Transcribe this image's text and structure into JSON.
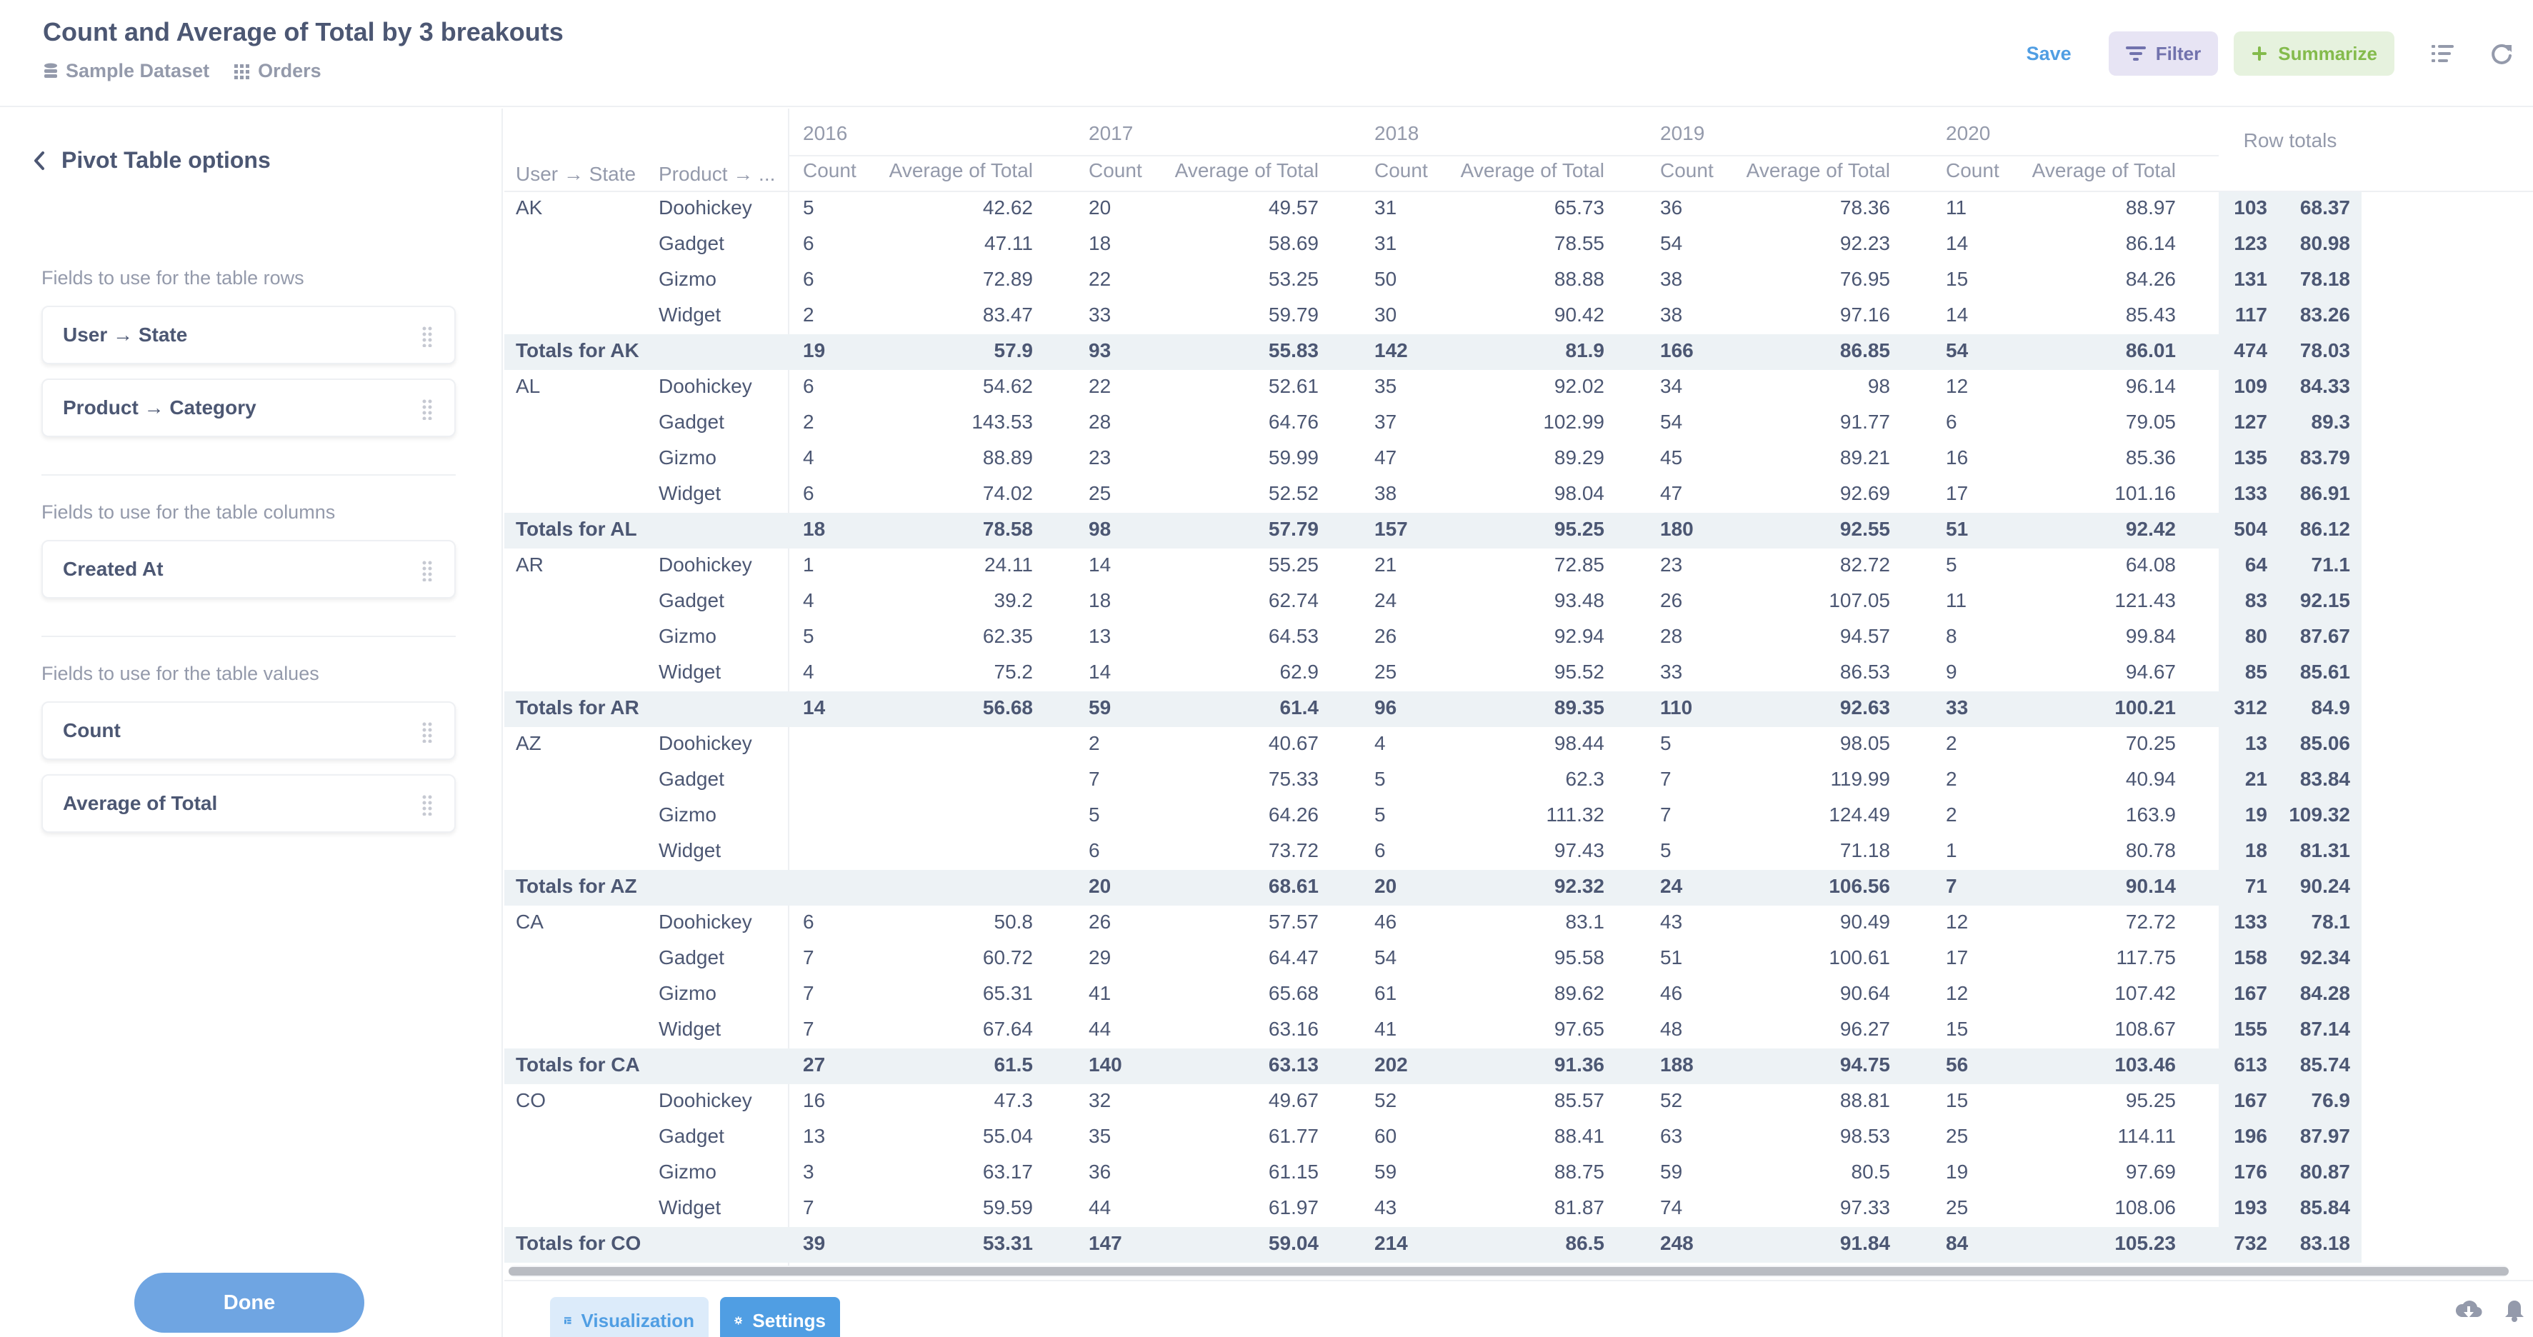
{
  "header": {
    "title": "Count and Average of Total by 3 breakouts",
    "breadcrumbs": [
      {
        "icon": "database-icon",
        "label": "Sample Dataset"
      },
      {
        "icon": "table-grid-icon",
        "label": "Orders"
      }
    ],
    "save_label": "Save",
    "filter_label": "Filter",
    "summarize_label": "Summarize"
  },
  "sidebar": {
    "back_label": "Pivot Table options",
    "rows_section_label": "Fields to use for the table rows",
    "row_fields": [
      "User → State",
      "Product → Category"
    ],
    "columns_section_label": "Fields to use for the table columns",
    "column_fields": [
      "Created At"
    ],
    "values_section_label": "Fields to use for the table values",
    "value_fields": [
      "Count",
      "Average of Total"
    ],
    "done_label": "Done"
  },
  "pivot": {
    "row_headers": [
      "User → State",
      "Product → ..."
    ],
    "years": [
      "2016",
      "2017",
      "2018",
      "2019",
      "2020"
    ],
    "measure_headers": [
      "Count",
      "Average of Total"
    ],
    "row_totals_label": "Row totals",
    "groups": [
      {
        "state": "AK",
        "rows": [
          {
            "product": "Doohickey",
            "values": [
              "5",
              "42.62",
              "20",
              "49.57",
              "31",
              "65.73",
              "36",
              "78.36",
              "11",
              "88.97"
            ],
            "totals": [
              "103",
              "68.37"
            ]
          },
          {
            "product": "Gadget",
            "values": [
              "6",
              "47.11",
              "18",
              "58.69",
              "31",
              "78.55",
              "54",
              "92.23",
              "14",
              "86.14"
            ],
            "totals": [
              "123",
              "80.98"
            ]
          },
          {
            "product": "Gizmo",
            "values": [
              "6",
              "72.89",
              "22",
              "53.25",
              "50",
              "88.88",
              "38",
              "76.95",
              "15",
              "84.26"
            ],
            "totals": [
              "131",
              "78.18"
            ]
          },
          {
            "product": "Widget",
            "values": [
              "2",
              "83.47",
              "33",
              "59.79",
              "30",
              "90.42",
              "38",
              "97.16",
              "14",
              "85.43"
            ],
            "totals": [
              "117",
              "83.26"
            ]
          }
        ],
        "total_label": "Totals for AK",
        "total_values": [
          "19",
          "57.9",
          "93",
          "55.83",
          "142",
          "81.9",
          "166",
          "86.85",
          "54",
          "86.01"
        ],
        "total_totals": [
          "474",
          "78.03"
        ]
      },
      {
        "state": "AL",
        "rows": [
          {
            "product": "Doohickey",
            "values": [
              "6",
              "54.62",
              "22",
              "52.61",
              "35",
              "92.02",
              "34",
              "98",
              "12",
              "96.14"
            ],
            "totals": [
              "109",
              "84.33"
            ]
          },
          {
            "product": "Gadget",
            "values": [
              "2",
              "143.53",
              "28",
              "64.76",
              "37",
              "102.99",
              "54",
              "91.77",
              "6",
              "79.05"
            ],
            "totals": [
              "127",
              "89.3"
            ]
          },
          {
            "product": "Gizmo",
            "values": [
              "4",
              "88.89",
              "23",
              "59.99",
              "47",
              "89.29",
              "45",
              "89.21",
              "16",
              "85.36"
            ],
            "totals": [
              "135",
              "83.79"
            ]
          },
          {
            "product": "Widget",
            "values": [
              "6",
              "74.02",
              "25",
              "52.52",
              "38",
              "98.04",
              "47",
              "92.69",
              "17",
              "101.16"
            ],
            "totals": [
              "133",
              "86.91"
            ]
          }
        ],
        "total_label": "Totals for AL",
        "total_values": [
          "18",
          "78.58",
          "98",
          "57.79",
          "157",
          "95.25",
          "180",
          "92.55",
          "51",
          "92.42"
        ],
        "total_totals": [
          "504",
          "86.12"
        ]
      },
      {
        "state": "AR",
        "rows": [
          {
            "product": "Doohickey",
            "values": [
              "1",
              "24.11",
              "14",
              "55.25",
              "21",
              "72.85",
              "23",
              "82.72",
              "5",
              "64.08"
            ],
            "totals": [
              "64",
              "71.1"
            ]
          },
          {
            "product": "Gadget",
            "values": [
              "4",
              "39.2",
              "18",
              "62.74",
              "24",
              "93.48",
              "26",
              "107.05",
              "11",
              "121.43"
            ],
            "totals": [
              "83",
              "92.15"
            ]
          },
          {
            "product": "Gizmo",
            "values": [
              "5",
              "62.35",
              "13",
              "64.53",
              "26",
              "92.94",
              "28",
              "94.57",
              "8",
              "99.84"
            ],
            "totals": [
              "80",
              "87.67"
            ]
          },
          {
            "product": "Widget",
            "values": [
              "4",
              "75.2",
              "14",
              "62.9",
              "25",
              "95.52",
              "33",
              "86.53",
              "9",
              "94.67"
            ],
            "totals": [
              "85",
              "85.61"
            ]
          }
        ],
        "total_label": "Totals for AR",
        "total_values": [
          "14",
          "56.68",
          "59",
          "61.4",
          "96",
          "89.35",
          "110",
          "92.63",
          "33",
          "100.21"
        ],
        "total_totals": [
          "312",
          "84.9"
        ]
      },
      {
        "state": "AZ",
        "rows": [
          {
            "product": "Doohickey",
            "values": [
              "",
              "",
              "2",
              "40.67",
              "4",
              "98.44",
              "5",
              "98.05",
              "2",
              "70.25"
            ],
            "totals": [
              "13",
              "85.06"
            ]
          },
          {
            "product": "Gadget",
            "values": [
              "",
              "",
              "7",
              "75.33",
              "5",
              "62.3",
              "7",
              "119.99",
              "2",
              "40.94"
            ],
            "totals": [
              "21",
              "83.84"
            ]
          },
          {
            "product": "Gizmo",
            "values": [
              "",
              "",
              "5",
              "64.26",
              "5",
              "111.32",
              "7",
              "124.49",
              "2",
              "163.9"
            ],
            "totals": [
              "19",
              "109.32"
            ]
          },
          {
            "product": "Widget",
            "values": [
              "",
              "",
              "6",
              "73.72",
              "6",
              "97.43",
              "5",
              "71.18",
              "1",
              "80.78"
            ],
            "totals": [
              "18",
              "81.31"
            ]
          }
        ],
        "total_label": "Totals for AZ",
        "total_values": [
          "",
          "",
          "20",
          "68.61",
          "20",
          "92.32",
          "24",
          "106.56",
          "7",
          "90.14"
        ],
        "total_totals": [
          "71",
          "90.24"
        ]
      },
      {
        "state": "CA",
        "rows": [
          {
            "product": "Doohickey",
            "values": [
              "6",
              "50.8",
              "26",
              "57.57",
              "46",
              "83.1",
              "43",
              "90.49",
              "12",
              "72.72"
            ],
            "totals": [
              "133",
              "78.1"
            ]
          },
          {
            "product": "Gadget",
            "values": [
              "7",
              "60.72",
              "29",
              "64.47",
              "54",
              "95.58",
              "51",
              "100.61",
              "17",
              "117.75"
            ],
            "totals": [
              "158",
              "92.34"
            ]
          },
          {
            "product": "Gizmo",
            "values": [
              "7",
              "65.31",
              "41",
              "65.68",
              "61",
              "89.62",
              "46",
              "90.64",
              "12",
              "107.42"
            ],
            "totals": [
              "167",
              "84.28"
            ]
          },
          {
            "product": "Widget",
            "values": [
              "7",
              "67.64",
              "44",
              "63.16",
              "41",
              "97.65",
              "48",
              "96.27",
              "15",
              "108.67"
            ],
            "totals": [
              "155",
              "87.14"
            ]
          }
        ],
        "total_label": "Totals for CA",
        "total_values": [
          "27",
          "61.5",
          "140",
          "63.13",
          "202",
          "91.36",
          "188",
          "94.75",
          "56",
          "103.46"
        ],
        "total_totals": [
          "613",
          "85.74"
        ]
      },
      {
        "state": "CO",
        "rows": [
          {
            "product": "Doohickey",
            "values": [
              "16",
              "47.3",
              "32",
              "49.67",
              "52",
              "85.57",
              "52",
              "88.81",
              "15",
              "95.25"
            ],
            "totals": [
              "167",
              "76.9"
            ]
          },
          {
            "product": "Gadget",
            "values": [
              "13",
              "55.04",
              "35",
              "61.77",
              "60",
              "88.41",
              "63",
              "98.53",
              "25",
              "114.11"
            ],
            "totals": [
              "196",
              "87.97"
            ]
          },
          {
            "product": "Gizmo",
            "values": [
              "3",
              "63.17",
              "36",
              "61.15",
              "59",
              "88.75",
              "59",
              "80.5",
              "19",
              "97.69"
            ],
            "totals": [
              "176",
              "80.87"
            ]
          },
          {
            "product": "Widget",
            "values": [
              "7",
              "59.59",
              "44",
              "61.97",
              "43",
              "81.87",
              "74",
              "97.33",
              "25",
              "108.06"
            ],
            "totals": [
              "193",
              "85.84"
            ]
          }
        ],
        "total_label": "Totals for CO",
        "total_values": [
          "39",
          "53.31",
          "147",
          "59.04",
          "214",
          "86.5",
          "248",
          "91.84",
          "84",
          "105.23"
        ],
        "total_totals": [
          "732",
          "83.18"
        ]
      }
    ]
  },
  "footer": {
    "visualization_label": "Visualization",
    "settings_label": "Settings"
  },
  "colors": {
    "brand": "#509ee3",
    "filter": "#7172ad",
    "summarize": "#84bb4c",
    "total_row_bg": "#edf2f5",
    "row_totals_bg": "#edf2f5"
  }
}
